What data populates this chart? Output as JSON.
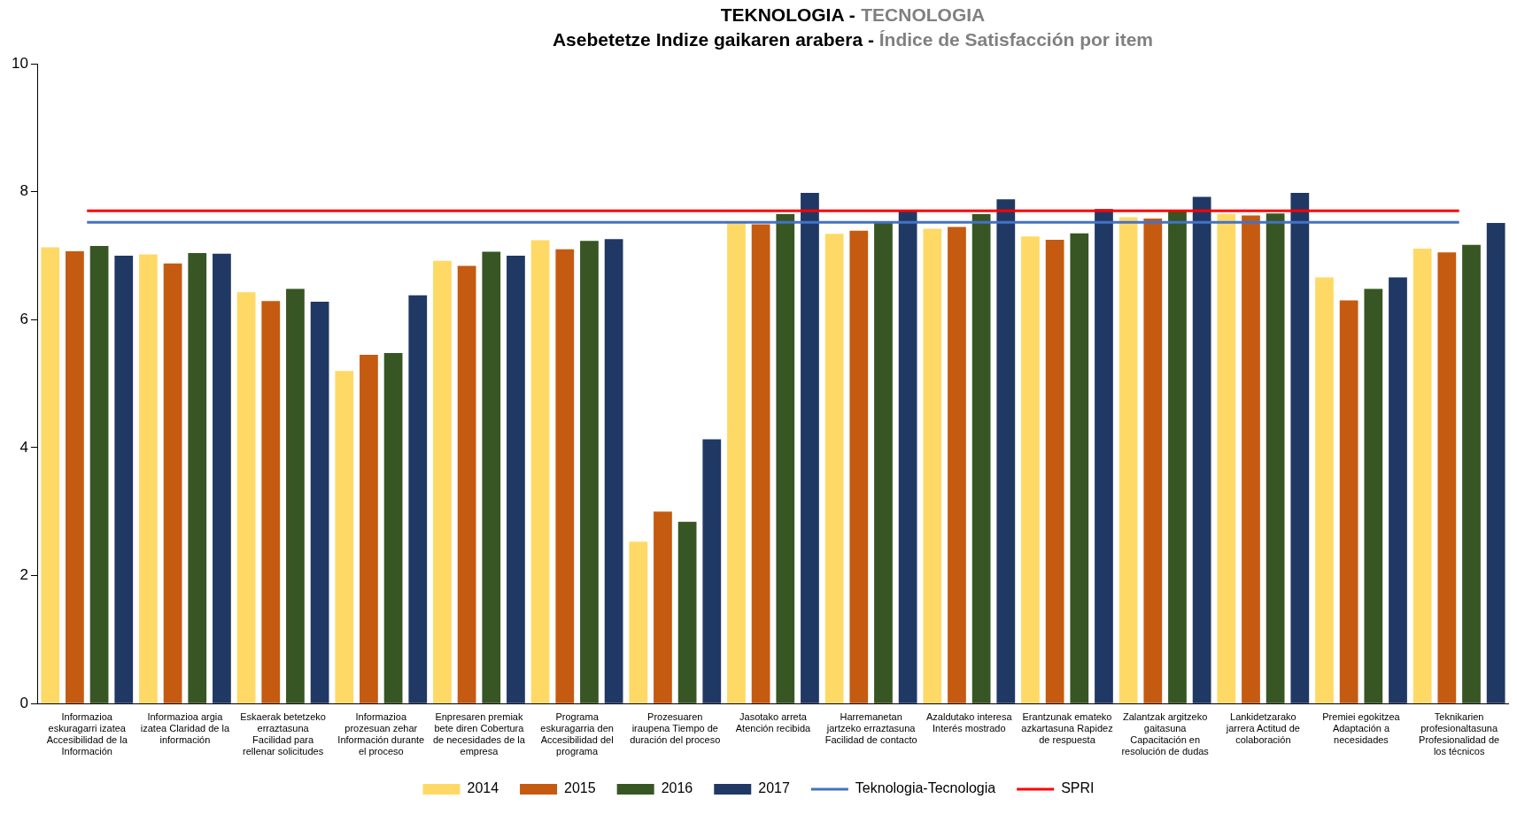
{
  "chart_data": {
    "type": "bar",
    "title": "TEKNOLOGIA - TECNOLOGIA",
    "subtitle": "Asebetetze Indize gaikaren arabera - Índice de Satisfacción por item",
    "categories": [
      "Informazioa eskuragarri izatea Accesibilidad de la Información",
      "Informazioa argia izatea Claridad de la información",
      "Eskaerak betetzeko erraztasuna Facilidad para rellenar solicitudes",
      "Informazioa prozesuan zehar Información durante el proceso",
      "Enpresaren premiak bete diren Cobertura de necesidades de la empresa",
      "Programa eskuragarria den Accesibilidad del programa",
      "Prozesuaren iraupena Tiempo de duración del proceso",
      "Jasotako arreta Atención recibida",
      "Harremanetan jartzeko erraztasuna Facilidad de contacto",
      "Azaldutako interesa Interés mostrado",
      "Erantzunak emateko azkartasuna Rapidez de respuesta",
      "Zalantzak argitzeko gaitasuna Capacitación en resolución de dudas",
      "Lankidetzarako jarrera Actitud de colaboración",
      "Premiei egokitzea Adaptación a necesidades",
      "Teknikarien profesionaltasuna Profesionalidad de los técnicos"
    ],
    "series": [
      {
        "name": "2014",
        "color": "#ffd966",
        "values": [
          7.13,
          7.02,
          6.43,
          5.2,
          6.92,
          7.24,
          2.53,
          7.52,
          7.34,
          7.42,
          7.3,
          7.6,
          7.65,
          6.66,
          7.11
        ]
      },
      {
        "name": "2015",
        "color": "#c55a11",
        "values": [
          7.07,
          6.88,
          6.29,
          5.45,
          6.84,
          7.1,
          3.0,
          7.49,
          7.39,
          7.45,
          7.25,
          7.58,
          7.63,
          6.3,
          7.05
        ]
      },
      {
        "name": "2016",
        "color": "#375623",
        "values": [
          7.15,
          7.04,
          6.48,
          5.48,
          7.06,
          7.23,
          2.84,
          7.65,
          7.52,
          7.65,
          7.35,
          7.7,
          7.66,
          6.48,
          7.17
        ]
      },
      {
        "name": "2017",
        "color": "#203864",
        "values": [
          7.0,
          7.03,
          6.28,
          6.38,
          7.0,
          7.26,
          4.13,
          7.98,
          7.71,
          7.88,
          7.73,
          7.92,
          7.98,
          6.66,
          7.51
        ]
      },
      {
        "name": "Teknologia-Tecnologia",
        "type": "line",
        "color": "#4472c4",
        "values": [
          7.52,
          7.52,
          7.52,
          7.52,
          7.52,
          7.52,
          7.52,
          7.52,
          7.52,
          7.52,
          7.52,
          7.52,
          7.52,
          7.52,
          7.52
        ]
      },
      {
        "name": "SPRI",
        "type": "line",
        "color": "#ff0000",
        "values": [
          7.7,
          7.7,
          7.7,
          7.7,
          7.7,
          7.7,
          7.7,
          7.7,
          7.7,
          7.7,
          7.7,
          7.7,
          7.7,
          7.7,
          7.7
        ]
      }
    ],
    "ylim": [
      0,
      10
    ],
    "yticks": [
      0,
      2,
      4,
      6,
      8,
      10
    ],
    "grid": false,
    "legend": "bottom",
    "marker": "none"
  }
}
